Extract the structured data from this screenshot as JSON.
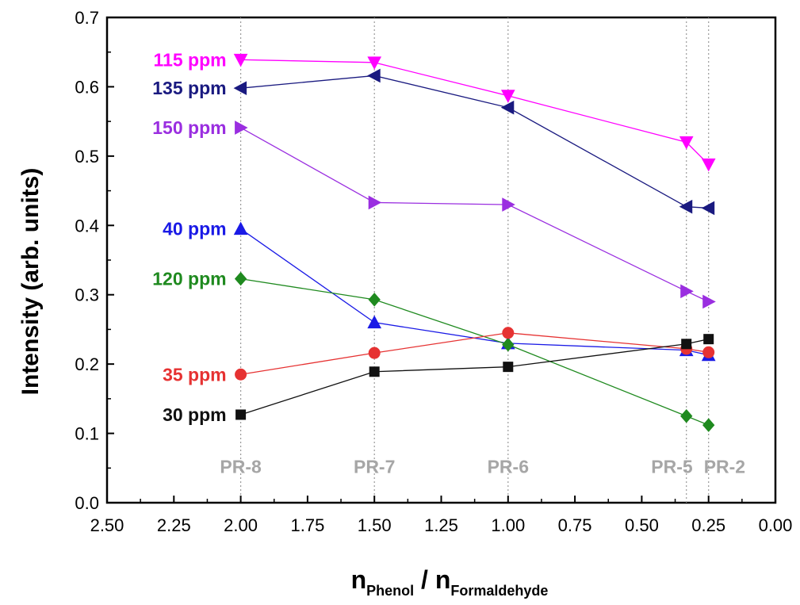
{
  "chart_data": {
    "type": "line",
    "xlabel": {
      "main": "n",
      "sub1": "Phenol",
      "sep": " / n",
      "sub2": "Formaldehyde"
    },
    "ylabel": "Intensity (arb. units)",
    "xlim": [
      2.5,
      0.0
    ],
    "ylim": [
      0.0,
      0.7
    ],
    "x_reversed": true,
    "x_ticks": [
      "2.50",
      "2.25",
      "2.00",
      "1.75",
      "1.50",
      "1.25",
      "1.00",
      "0.75",
      "0.50",
      "0.25",
      "0.00"
    ],
    "y_ticks": [
      "0.0",
      "0.1",
      "0.2",
      "0.3",
      "0.4",
      "0.5",
      "0.6",
      "0.7"
    ],
    "x": [
      2.0,
      1.5,
      1.0,
      0.333,
      0.25
    ],
    "samples": [
      {
        "name": "PR-8",
        "x": 2.0
      },
      {
        "name": "PR-7",
        "x": 1.5
      },
      {
        "name": "PR-6",
        "x": 1.0
      },
      {
        "name": "PR-5",
        "x": 0.333
      },
      {
        "name": "PR-2",
        "x": 0.25
      }
    ],
    "series": [
      {
        "name": "115 ppm",
        "marker": "triangle-down",
        "color": "#ff00ff",
        "values": [
          0.639,
          0.635,
          0.587,
          0.52,
          0.488
        ]
      },
      {
        "name": "135 ppm",
        "marker": "triangle-left",
        "color": "#1a1a80",
        "values": [
          0.598,
          0.616,
          0.57,
          0.427,
          0.425
        ]
      },
      {
        "name": "150 ppm",
        "marker": "triangle-right",
        "color": "#9a2ee0",
        "values": [
          0.541,
          0.433,
          0.43,
          0.305,
          0.29
        ]
      },
      {
        "name": "40 ppm",
        "marker": "triangle-up",
        "color": "#1a1ae6",
        "values": [
          0.395,
          0.26,
          0.23,
          0.22,
          0.213
        ]
      },
      {
        "name": "120 ppm",
        "marker": "diamond",
        "color": "#1f8a1f",
        "values": [
          0.323,
          0.293,
          0.228,
          0.125,
          0.112
        ]
      },
      {
        "name": "35 ppm",
        "marker": "circle",
        "color": "#e63232",
        "values": [
          0.185,
          0.216,
          0.245,
          0.222,
          0.217
        ]
      },
      {
        "name": "30 ppm",
        "marker": "square",
        "color": "#111111",
        "values": [
          0.127,
          0.189,
          0.196,
          0.229,
          0.236
        ]
      }
    ],
    "grid": false,
    "vertical_dotted_lines_at_samples": true,
    "label_color_sample": "#a6a6a6"
  }
}
